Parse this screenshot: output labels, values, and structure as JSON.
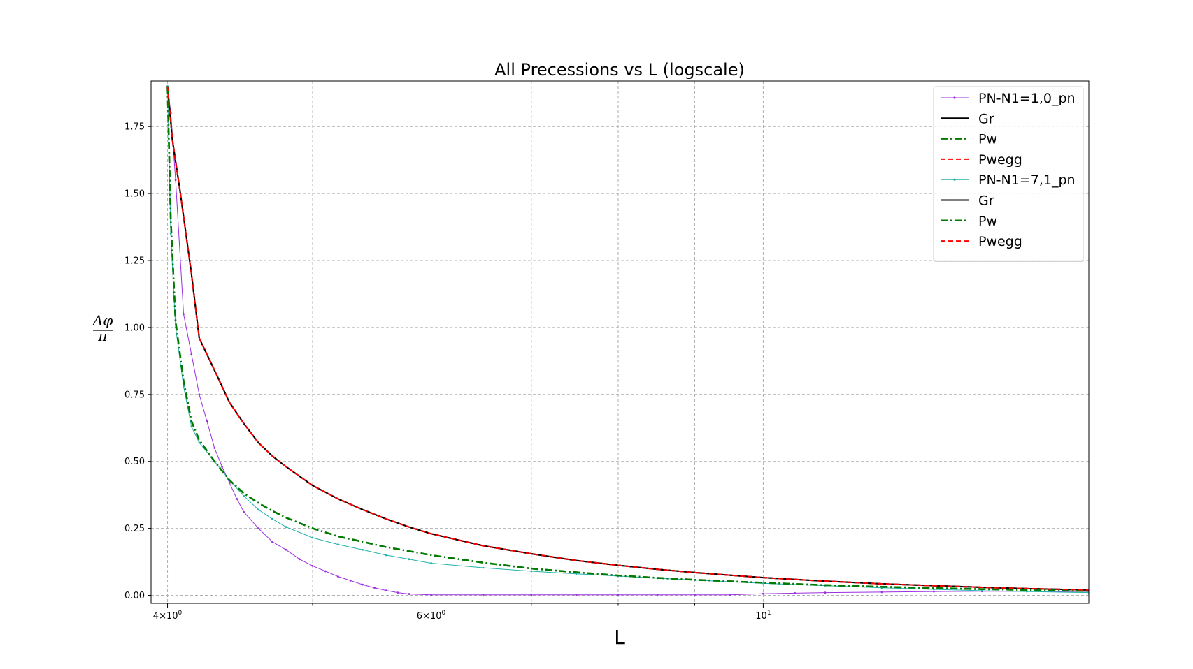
{
  "chart_data": {
    "type": "line",
    "title": "All Precessions vs L (logscale)",
    "xlabel": "L",
    "ylabel_numerator": "Δφ",
    "ylabel_denominator": "π",
    "xscale": "log",
    "xlim": [
      3.9,
      16.5
    ],
    "ylim": [
      -0.03,
      1.92
    ],
    "grid": true,
    "legend_position": "top-right",
    "x_ticks_major": [
      {
        "value": 4,
        "base": "4×10",
        "exp": "0"
      },
      {
        "value": 6,
        "base": "6×10",
        "exp": "0"
      },
      {
        "value": 10,
        "base": "10",
        "exp": "1"
      }
    ],
    "x_ticks_minor": [
      5,
      7,
      8,
      9
    ],
    "y_ticks": [
      {
        "value": 0.0,
        "label": "0.00"
      },
      {
        "value": 0.25,
        "label": "0.25"
      },
      {
        "value": 0.5,
        "label": "0.50"
      },
      {
        "value": 0.75,
        "label": "0.75"
      },
      {
        "value": 1.0,
        "label": "1.00"
      },
      {
        "value": 1.25,
        "label": "1.25"
      },
      {
        "value": 1.5,
        "label": "1.50"
      },
      {
        "value": 1.75,
        "label": "1.75"
      }
    ],
    "series": [
      {
        "name": "PN-N1=1,0_pn",
        "color": "#9b30e0",
        "style": "solid-markers",
        "x": [
          4.0,
          4.02,
          4.05,
          4.1,
          4.15,
          4.2,
          4.25,
          4.3,
          4.35,
          4.4,
          4.45,
          4.5,
          4.6,
          4.7,
          4.8,
          4.9,
          5.0,
          5.1,
          5.2,
          5.3,
          5.4,
          5.5,
          5.6,
          5.7,
          5.8,
          6.0,
          6.5,
          7.0,
          7.5,
          8.0,
          8.5,
          9.0,
          9.5,
          10.0,
          10.5,
          11.0,
          12.0,
          13.0,
          14.0,
          15.0,
          16.5
        ],
        "y": [
          1.9,
          1.8,
          1.55,
          1.05,
          0.9,
          0.75,
          0.65,
          0.55,
          0.48,
          0.42,
          0.36,
          0.31,
          0.25,
          0.2,
          0.17,
          0.135,
          0.11,
          0.09,
          0.07,
          0.055,
          0.04,
          0.028,
          0.018,
          0.01,
          0.005,
          0.002,
          0.002,
          0.002,
          0.002,
          0.002,
          0.002,
          0.002,
          0.002,
          0.006,
          0.008,
          0.01,
          0.012,
          0.014,
          0.015,
          0.015,
          0.014
        ]
      },
      {
        "name": "Gr",
        "color": "#000000",
        "style": "solid",
        "x": [
          4.0,
          4.03,
          4.08,
          4.15,
          4.2,
          4.3,
          4.4,
          4.5,
          4.6,
          4.7,
          4.8,
          5.0,
          5.2,
          5.4,
          5.6,
          5.8,
          6.0,
          6.5,
          7.0,
          7.5,
          8.0,
          8.5,
          9.0,
          10.0,
          11.0,
          12.0,
          13.0,
          14.0,
          15.0,
          16.5
        ],
        "y": [
          1.9,
          1.7,
          1.5,
          1.2,
          0.96,
          0.84,
          0.72,
          0.64,
          0.57,
          0.52,
          0.48,
          0.41,
          0.36,
          0.32,
          0.285,
          0.255,
          0.23,
          0.185,
          0.155,
          0.13,
          0.112,
          0.097,
          0.085,
          0.066,
          0.053,
          0.043,
          0.036,
          0.03,
          0.025,
          0.02
        ]
      },
      {
        "name": "Pw",
        "color": "#007a00",
        "style": "dashdot",
        "x": [
          4.0,
          4.02,
          4.05,
          4.1,
          4.15,
          4.2,
          4.3,
          4.4,
          4.5,
          4.6,
          4.7,
          4.8,
          5.0,
          5.2,
          5.4,
          5.6,
          5.8,
          6.0,
          6.5,
          7.0,
          7.5,
          8.0,
          8.5,
          9.0,
          10.0,
          11.0,
          12.0,
          13.0,
          14.0,
          15.0,
          16.5
        ],
        "y": [
          1.9,
          1.4,
          1.02,
          0.8,
          0.65,
          0.58,
          0.5,
          0.43,
          0.38,
          0.345,
          0.315,
          0.29,
          0.25,
          0.22,
          0.2,
          0.18,
          0.165,
          0.15,
          0.122,
          0.1,
          0.086,
          0.074,
          0.065,
          0.058,
          0.047,
          0.038,
          0.032,
          0.027,
          0.023,
          0.02,
          0.016
        ]
      },
      {
        "name": "Pwegg",
        "color": "#ff0000",
        "style": "dashed",
        "x": [
          4.0,
          4.03,
          4.08,
          4.15,
          4.2,
          4.3,
          4.4,
          4.5,
          4.6,
          4.7,
          4.8,
          5.0,
          5.2,
          5.4,
          5.6,
          5.8,
          6.0,
          6.5,
          7.0,
          7.5,
          8.0,
          8.5,
          9.0,
          10.0,
          11.0,
          12.0,
          13.0,
          14.0,
          15.0,
          16.5
        ],
        "y": [
          1.9,
          1.7,
          1.5,
          1.2,
          0.96,
          0.84,
          0.72,
          0.64,
          0.57,
          0.52,
          0.48,
          0.41,
          0.36,
          0.32,
          0.285,
          0.255,
          0.23,
          0.185,
          0.155,
          0.13,
          0.112,
          0.097,
          0.085,
          0.066,
          0.053,
          0.043,
          0.036,
          0.03,
          0.025,
          0.02
        ]
      },
      {
        "name": "PN-N1=7,1_pn",
        "color": "#20b2aa",
        "style": "solid-markers",
        "x": [
          4.0,
          4.02,
          4.05,
          4.1,
          4.15,
          4.2,
          4.3,
          4.4,
          4.5,
          4.6,
          4.7,
          4.8,
          5.0,
          5.2,
          5.4,
          5.6,
          5.8,
          6.0,
          6.5,
          7.0,
          7.5,
          8.0,
          8.5,
          9.0,
          10.0,
          11.0,
          12.0,
          13.0,
          14.0,
          15.0,
          16.5
        ],
        "y": [
          1.9,
          1.35,
          1.0,
          0.78,
          0.63,
          0.57,
          0.5,
          0.43,
          0.37,
          0.32,
          0.285,
          0.255,
          0.215,
          0.19,
          0.17,
          0.15,
          0.135,
          0.12,
          0.103,
          0.09,
          0.08,
          0.072,
          0.064,
          0.057,
          0.045,
          0.036,
          0.028,
          0.022,
          0.017,
          0.014,
          0.01
        ]
      },
      {
        "name": "Gr",
        "color": "#000000",
        "style": "solid",
        "x": [
          4.0,
          4.03,
          4.08,
          4.15,
          4.2,
          4.3,
          4.4,
          4.5,
          4.6,
          4.7,
          4.8,
          5.0,
          5.2,
          5.4,
          5.6,
          5.8,
          6.0,
          6.5,
          7.0,
          7.5,
          8.0,
          8.5,
          9.0,
          10.0,
          11.0,
          12.0,
          13.0,
          14.0,
          15.0,
          16.5
        ],
        "y": [
          1.9,
          1.7,
          1.5,
          1.2,
          0.96,
          0.84,
          0.72,
          0.64,
          0.57,
          0.52,
          0.48,
          0.41,
          0.36,
          0.32,
          0.285,
          0.255,
          0.23,
          0.185,
          0.155,
          0.13,
          0.112,
          0.097,
          0.085,
          0.066,
          0.053,
          0.043,
          0.036,
          0.03,
          0.025,
          0.02
        ]
      },
      {
        "name": "Pw",
        "color": "#007a00",
        "style": "dashdot",
        "x": [
          4.0,
          4.02,
          4.05,
          4.1,
          4.15,
          4.2,
          4.3,
          4.4,
          4.5,
          4.6,
          4.7,
          4.8,
          5.0,
          5.2,
          5.4,
          5.6,
          5.8,
          6.0,
          6.5,
          7.0,
          7.5,
          8.0,
          8.5,
          9.0,
          10.0,
          11.0,
          12.0,
          13.0,
          14.0,
          15.0,
          16.5
        ],
        "y": [
          1.9,
          1.4,
          1.02,
          0.8,
          0.65,
          0.58,
          0.5,
          0.43,
          0.38,
          0.345,
          0.315,
          0.29,
          0.25,
          0.22,
          0.2,
          0.18,
          0.165,
          0.15,
          0.122,
          0.1,
          0.086,
          0.074,
          0.065,
          0.058,
          0.047,
          0.038,
          0.032,
          0.027,
          0.023,
          0.02,
          0.016
        ]
      },
      {
        "name": "Pwegg",
        "color": "#ff0000",
        "style": "dashed",
        "x": [
          4.0,
          4.03,
          4.08,
          4.15,
          4.2,
          4.3,
          4.4,
          4.5,
          4.6,
          4.7,
          4.8,
          5.0,
          5.2,
          5.4,
          5.6,
          5.8,
          6.0,
          6.5,
          7.0,
          7.5,
          8.0,
          8.5,
          9.0,
          10.0,
          11.0,
          12.0,
          13.0,
          14.0,
          15.0,
          16.5
        ],
        "y": [
          1.9,
          1.7,
          1.5,
          1.2,
          0.96,
          0.84,
          0.72,
          0.64,
          0.57,
          0.52,
          0.48,
          0.41,
          0.36,
          0.32,
          0.285,
          0.255,
          0.23,
          0.185,
          0.155,
          0.13,
          0.112,
          0.097,
          0.085,
          0.066,
          0.053,
          0.043,
          0.036,
          0.03,
          0.025,
          0.02
        ]
      }
    ]
  }
}
